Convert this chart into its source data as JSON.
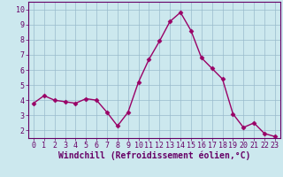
{
  "x": [
    0,
    1,
    2,
    3,
    4,
    5,
    6,
    7,
    8,
    9,
    10,
    11,
    12,
    13,
    14,
    15,
    16,
    17,
    18,
    19,
    20,
    21,
    22,
    23
  ],
  "y": [
    3.8,
    4.3,
    4.0,
    3.9,
    3.8,
    4.1,
    4.0,
    3.2,
    2.3,
    3.2,
    5.2,
    6.7,
    7.9,
    9.2,
    9.8,
    8.6,
    6.8,
    6.1,
    5.4,
    3.1,
    2.2,
    2.5,
    1.8,
    1.6
  ],
  "line_color": "#990066",
  "marker": "D",
  "markersize": 2.5,
  "linewidth": 1.0,
  "xlabel": "Windchill (Refroidissement éolien,°C)",
  "xlabel_fontsize": 7,
  "xlim": [
    -0.5,
    23.5
  ],
  "ylim": [
    1.5,
    10.5
  ],
  "yticks": [
    2,
    3,
    4,
    5,
    6,
    7,
    8,
    9,
    10
  ],
  "xticks": [
    0,
    1,
    2,
    3,
    4,
    5,
    6,
    7,
    8,
    9,
    10,
    11,
    12,
    13,
    14,
    15,
    16,
    17,
    18,
    19,
    20,
    21,
    22,
    23
  ],
  "background_color": "#cce8ee",
  "grid_color": "#99bbcc",
  "tick_fontsize": 6,
  "text_color": "#660066",
  "spine_color": "#660066"
}
